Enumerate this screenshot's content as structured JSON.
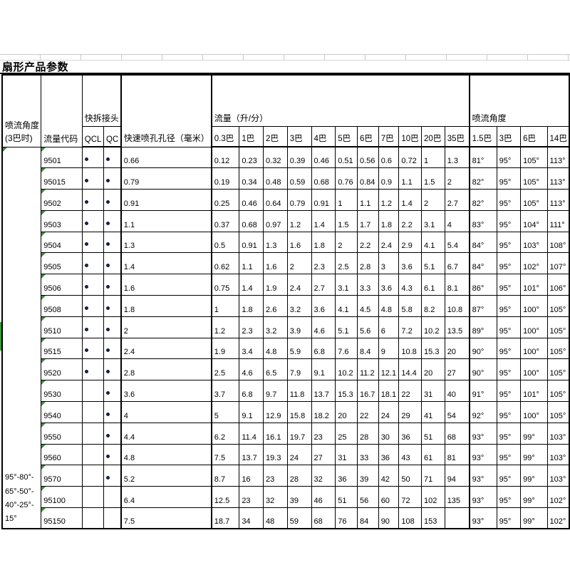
{
  "title": "扇形产品参数",
  "colors": {
    "dot": "#16213f",
    "error_indicator": "#3c8c3c",
    "left_strip": "#2fa12f",
    "border": "#000000",
    "gridline": "#c9c9c9"
  },
  "icons": {
    "qc_dot": "filled-circle",
    "error_indicator": "green-corner-triangle"
  },
  "table": {
    "header": {
      "angle_header_line1": "喷流角度",
      "angle_header_line2": "(3巴时)",
      "flow_code": "流量代码",
      "quick_release": "快拆接头",
      "qcl": "QCL",
      "qc": "QC",
      "orifice": "快速喷孔孔径（毫米）",
      "flow_group": "流量（升/分）",
      "flow_cols": [
        "0.3巴",
        "1巴",
        "2巴",
        "3巴",
        "4巴",
        "5巴",
        "6巴",
        "7巴",
        "10巴",
        "20巴",
        "35巴"
      ],
      "angle_group": "喷流角度",
      "angle_cols": [
        "1.5巴",
        "3巴",
        "6巴",
        "14巴"
      ]
    },
    "angle_span_lines": [
      "95°-80°-",
      "65°-50°-",
      "40°-25°-",
      "15°"
    ],
    "rows": [
      {
        "code": "9501",
        "qcl": true,
        "qc": true,
        "dia": "0.66",
        "flows": [
          "0.12",
          "0.23",
          "0.32",
          "0.39",
          "0.46",
          "0.51",
          "0.56",
          "0.6",
          "0.72",
          "1",
          "1.3"
        ],
        "angles": [
          "81°",
          "95°",
          "105°",
          "113°"
        ]
      },
      {
        "code": "95015",
        "qcl": true,
        "qc": true,
        "dia": "0.79",
        "flows": [
          "0.19",
          "0.34",
          "0.48",
          "0.59",
          "0.68",
          "0.76",
          "0.84",
          "0.9",
          "1.1",
          "1.5",
          "2"
        ],
        "angles": [
          "82°",
          "95°",
          "105°",
          "113°"
        ]
      },
      {
        "code": "9502",
        "qcl": true,
        "qc": true,
        "dia": "0.91",
        "flows": [
          "0.25",
          "0.46",
          "0.64",
          "0.79",
          "0.91",
          "1",
          "1.1",
          "1.2",
          "1.4",
          "2",
          "2.7"
        ],
        "angles": [
          "82°",
          "95°",
          "105°",
          "113°"
        ]
      },
      {
        "code": "9503",
        "qcl": true,
        "qc": true,
        "dia": "1.1",
        "flows": [
          "0.37",
          "0.68",
          "0.97",
          "1.2",
          "1.4",
          "1.5",
          "1.7",
          "1.8",
          "2.2",
          "3.1",
          "4"
        ],
        "angles": [
          "83°",
          "95°",
          "104°",
          "111°"
        ]
      },
      {
        "code": "9504",
        "qcl": true,
        "qc": true,
        "dia": "1.3",
        "flows": [
          "0.5",
          "0.91",
          "1.3",
          "1.6",
          "1.8",
          "2",
          "2.2",
          "2.4",
          "2.9",
          "4.1",
          "5.4"
        ],
        "angles": [
          "84°",
          "95°",
          "103°",
          "108°"
        ]
      },
      {
        "code": "9505",
        "qcl": true,
        "qc": true,
        "dia": "1.4",
        "flows": [
          "0.62",
          "1.1",
          "1.6",
          "2",
          "2.3",
          "2.5",
          "2.8",
          "3",
          "3.6",
          "5.1",
          "6.7"
        ],
        "angles": [
          "84°",
          "95°",
          "102°",
          "107°"
        ]
      },
      {
        "code": "9506",
        "qcl": true,
        "qc": true,
        "dia": "1.6",
        "flows": [
          "0.75",
          "1.4",
          "1.9",
          "2.4",
          "2.7",
          "3.1",
          "3.3",
          "3.6",
          "4.3",
          "6.1",
          "8.1"
        ],
        "angles": [
          "86°",
          "95°",
          "101°",
          "106°"
        ]
      },
      {
        "code": "9508",
        "qcl": true,
        "qc": true,
        "dia": "1.8",
        "flows": [
          "1",
          "1.8",
          "2.6",
          "3.2",
          "3.6",
          "4.1",
          "4.5",
          "4.8",
          "5.8",
          "8.2",
          "10.8"
        ],
        "angles": [
          "87°",
          "95°",
          "100°",
          "105°"
        ]
      },
      {
        "code": "9510",
        "qcl": true,
        "qc": true,
        "dia": "2",
        "flows": [
          "1.2",
          "2.3",
          "3.2",
          "3.9",
          "4.6",
          "5.1",
          "5.6",
          "6",
          "7.2",
          "10.2",
          "13.5"
        ],
        "angles": [
          "89°",
          "95°",
          "100°",
          "105°"
        ]
      },
      {
        "code": "9515",
        "qcl": true,
        "qc": true,
        "dia": "2.4",
        "flows": [
          "1.9",
          "3.4",
          "4.8",
          "5.9",
          "6.8",
          "7.6",
          "8.4",
          "9",
          "10.8",
          "15.3",
          "20"
        ],
        "angles": [
          "90°",
          "95°",
          "100°",
          "105°"
        ]
      },
      {
        "code": "9520",
        "qcl": true,
        "qc": true,
        "dia": "2.8",
        "flows": [
          "2.5",
          "4.6",
          "6.5",
          "7.9",
          "9.1",
          "10.2",
          "11.2",
          "12.1",
          "14.4",
          "20",
          "27"
        ],
        "angles": [
          "90°",
          "95°",
          "100°",
          "105°"
        ]
      },
      {
        "code": "9530",
        "qcl": false,
        "qc": true,
        "dia": "3.6",
        "flows": [
          "3.7",
          "6.8",
          "9.7",
          "11.8",
          "13.7",
          "15.3",
          "16.7",
          "18.1",
          "22",
          "31",
          "40"
        ],
        "angles": [
          "91°",
          "95°",
          "101°",
          "105°"
        ]
      },
      {
        "code": "9540",
        "qcl": false,
        "qc": true,
        "dia": "4",
        "flows": [
          "5",
          "9.1",
          "12.9",
          "15.8",
          "18.2",
          "20",
          "22",
          "24",
          "29",
          "41",
          "54"
        ],
        "angles": [
          "92°",
          "95°",
          "100°",
          "105°"
        ]
      },
      {
        "code": "9550",
        "qcl": false,
        "qc": true,
        "dia": "4.4",
        "flows": [
          "6.2",
          "11.4",
          "16.1",
          "19.7",
          "23",
          "25",
          "28",
          "30",
          "36",
          "51",
          "68"
        ],
        "angles": [
          "93°",
          "95°",
          "99°",
          "103°"
        ]
      },
      {
        "code": "9560",
        "qcl": false,
        "qc": true,
        "dia": "4.8",
        "flows": [
          "7.5",
          "13.7",
          "19.3",
          "24",
          "27",
          "31",
          "33",
          "36",
          "43",
          "61",
          "81"
        ],
        "angles": [
          "93°",
          "95°",
          "99°",
          "103°"
        ]
      },
      {
        "code": "9570",
        "qcl": false,
        "qc": true,
        "dia": "5.2",
        "flows": [
          "8.7",
          "16",
          "23",
          "28",
          "32",
          "36",
          "39",
          "42",
          "50",
          "71",
          "94"
        ],
        "angles": [
          "93°",
          "95°",
          "99°",
          "103°"
        ]
      },
      {
        "code": "95100",
        "qcl": false,
        "qc": false,
        "dia": "6.4",
        "flows": [
          "12.5",
          "23",
          "32",
          "39",
          "46",
          "51",
          "56",
          "60",
          "72",
          "102",
          "135"
        ],
        "angles": [
          "93°",
          "95°",
          "99°",
          "102°"
        ]
      },
      {
        "code": "95150",
        "qcl": false,
        "qc": false,
        "dia": "7.5",
        "flows": [
          "18.7",
          "34",
          "48",
          "59",
          "68",
          "76",
          "84",
          "90",
          "108",
          "153",
          ""
        ],
        "angles": [
          "93°",
          "95°",
          "99°",
          "102°"
        ]
      }
    ]
  }
}
